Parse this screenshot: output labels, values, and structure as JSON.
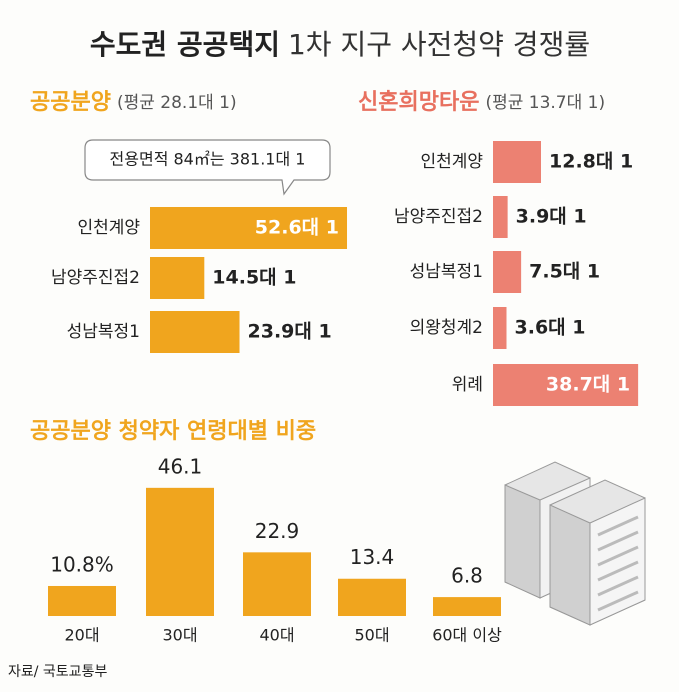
{
  "title": [
    "수도권 공공택지",
    "1차 지구 사전청약 경쟁률"
  ],
  "source": "자료/ 국토교통부",
  "chart_data": [
    {
      "type": "hbar",
      "title": "공공분양",
      "subtitle": "(평균 28.1대 1)",
      "annotation": "전용면적 84㎡는 381.1대 1",
      "categories": [
        "인천계양",
        "남양주진접2",
        "성남복정1"
      ],
      "values": [
        52.6,
        14.5,
        23.9
      ],
      "value_labels": [
        "52.6대 1",
        "14.5대 1",
        "23.9대 1"
      ],
      "color": "#f0a51e",
      "xlim": [
        0,
        55
      ]
    },
    {
      "type": "hbar",
      "title": "신혼희망타운",
      "subtitle": "(평균 13.7대 1)",
      "categories": [
        "인천계양",
        "남양주진접2",
        "성남복정1",
        "의왕청계2",
        "위례"
      ],
      "values": [
        12.8,
        3.9,
        7.5,
        3.6,
        38.7
      ],
      "value_labels": [
        "12.8대 1",
        "3.9대 1",
        "7.5대 1",
        "3.6대 1",
        "38.7대 1"
      ],
      "color": "#ec8172",
      "xlim": [
        0,
        40
      ]
    },
    {
      "type": "bar",
      "title": "공공분양 청약자 연령대별 비중",
      "categories": [
        "20대",
        "30대",
        "40대",
        "50대",
        "60대 이상"
      ],
      "values": [
        10.8,
        46.1,
        22.9,
        13.4,
        6.8
      ],
      "value_labels": [
        "10.8%",
        "46.1",
        "22.9",
        "13.4",
        "6.8"
      ],
      "color": "#f0a51e",
      "ylim": [
        0,
        50
      ]
    }
  ]
}
